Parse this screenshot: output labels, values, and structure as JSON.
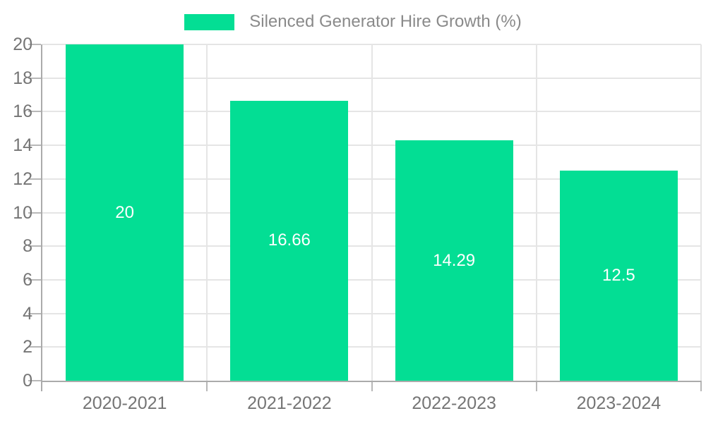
{
  "chart_data": {
    "type": "bar",
    "title": "",
    "series_name": "Silenced Generator Hire Growth (%)",
    "categories": [
      "2020-2021",
      "2021-2022",
      "2022-2023",
      "2023-2024"
    ],
    "values": [
      20,
      16.66,
      14.29,
      12.5
    ],
    "value_labels": [
      "20",
      "16.66",
      "14.29",
      "12.5"
    ],
    "xlabel": "",
    "ylabel": "",
    "ylim": [
      0,
      20
    ],
    "ytick_step": 2,
    "grid": true,
    "legend_position": "top-center",
    "bar_color": "#03DE94",
    "value_label_color": "#FFFFFF",
    "grid_color": "#E5E5E5",
    "axis_color": "#ABABAB",
    "tick_color": "#B8B8B8",
    "tick_text_color": "#757575",
    "legend_text_color": "#8A8A8A"
  }
}
